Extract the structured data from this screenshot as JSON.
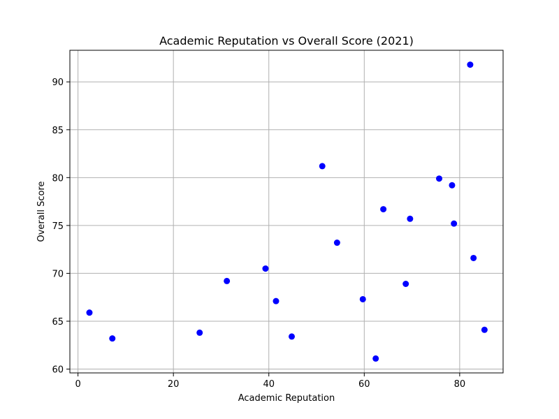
{
  "chart_data": {
    "type": "scatter",
    "title": "Academic Reputation vs Overall Score (2021)",
    "xlabel": "Academic Reputation",
    "ylabel": "Overall Score",
    "xlim": [
      -1.7,
      89.1
    ],
    "ylim": [
      59.6,
      93.3
    ],
    "xticks": [
      0,
      20,
      40,
      60,
      80
    ],
    "yticks": [
      60,
      65,
      70,
      75,
      80,
      85,
      90
    ],
    "grid": true,
    "point_color": "#0000ff",
    "grid_color": "#b0b0b0",
    "points": [
      {
        "x": 2.4,
        "y": 65.9
      },
      {
        "x": 7.2,
        "y": 63.2
      },
      {
        "x": 25.5,
        "y": 63.8
      },
      {
        "x": 31.2,
        "y": 69.2
      },
      {
        "x": 39.3,
        "y": 70.5
      },
      {
        "x": 41.5,
        "y": 67.1
      },
      {
        "x": 44.8,
        "y": 63.4
      },
      {
        "x": 51.2,
        "y": 81.2
      },
      {
        "x": 54.3,
        "y": 73.2
      },
      {
        "x": 59.7,
        "y": 67.3
      },
      {
        "x": 62.4,
        "y": 61.1
      },
      {
        "x": 64.0,
        "y": 76.7
      },
      {
        "x": 68.7,
        "y": 68.9
      },
      {
        "x": 69.6,
        "y": 75.7
      },
      {
        "x": 75.7,
        "y": 79.9
      },
      {
        "x": 78.4,
        "y": 79.2
      },
      {
        "x": 78.8,
        "y": 75.2
      },
      {
        "x": 82.2,
        "y": 91.8
      },
      {
        "x": 82.9,
        "y": 71.6
      },
      {
        "x": 85.2,
        "y": 64.1
      }
    ]
  }
}
